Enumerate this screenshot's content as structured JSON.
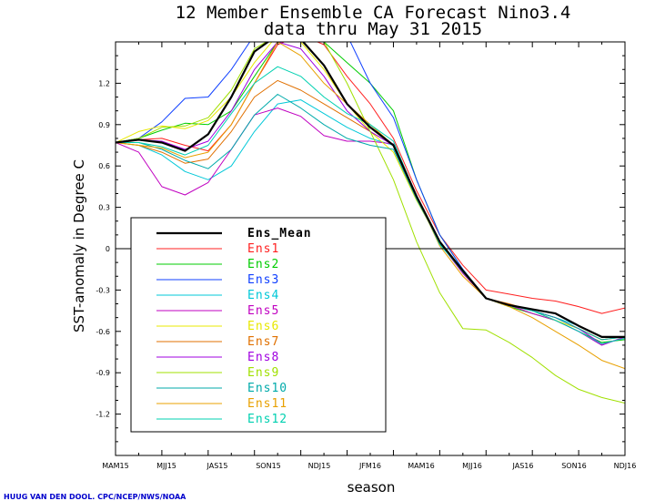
{
  "chart_data": {
    "type": "line",
    "title": "12 Member Ensemble CA Forecast Nino3.4",
    "subtitle": "data thru May 31 2015",
    "xlabel": "season",
    "ylabel": "SST-anomaly in Degree C",
    "credit": "HUUG VAN DEN DOOL. CPC/NCEP/NWS/NOAA",
    "x_ticks": [
      "MAM15",
      "MJJ15",
      "JAS15",
      "SON15",
      "NDJ15",
      "JFM16",
      "MAM16",
      "MJJ16",
      "JAS16",
      "SON16",
      "NDJ16"
    ],
    "y_ticks": [
      1.2,
      0.9,
      0.6,
      0.3,
      0,
      -0.3,
      -0.6,
      -0.9,
      -1.2
    ],
    "ylim": [
      -1.5,
      1.5
    ],
    "grid": false,
    "legend_position": "bottom-left",
    "series": [
      {
        "name": "Ens_Mean",
        "color": "#000000",
        "values": [
          0.77,
          0.79,
          0.77,
          0.71,
          0.83,
          1.1,
          1.43,
          1.55,
          1.52,
          1.33,
          1.05,
          0.88,
          0.75,
          0.38,
          0.05,
          -0.16,
          -0.36,
          -0.41,
          -0.44,
          -0.47,
          -0.56,
          -0.64,
          -0.64
        ]
      },
      {
        "name": "Ens1",
        "color": "#ff2020",
        "values": [
          0.77,
          0.79,
          0.8,
          0.75,
          0.71,
          0.9,
          1.2,
          1.48,
          1.55,
          1.48,
          1.25,
          1.05,
          0.8,
          0.42,
          0.1,
          -0.12,
          -0.3,
          -0.33,
          -0.36,
          -0.38,
          -0.42,
          -0.47,
          -0.43
        ]
      },
      {
        "name": "Ens2",
        "color": "#00cc00",
        "values": [
          0.77,
          0.8,
          0.86,
          0.91,
          0.9,
          1.0,
          1.25,
          1.5,
          1.55,
          1.5,
          1.35,
          1.2,
          1.0,
          0.5,
          0.1,
          -0.15,
          -0.36,
          -0.42,
          -0.47,
          -0.52,
          -0.6,
          -0.68,
          -0.66
        ]
      },
      {
        "name": "Ens3",
        "color": "#1040ff",
        "values": [
          0.77,
          0.8,
          0.92,
          1.09,
          1.1,
          1.3,
          1.55,
          1.55,
          1.55,
          1.55,
          1.55,
          1.2,
          0.95,
          0.5,
          0.1,
          -0.15,
          -0.36,
          -0.41,
          -0.45,
          -0.52,
          -0.6,
          -0.7,
          -0.64
        ]
      },
      {
        "name": "Ens4",
        "color": "#00c8d8",
        "values": [
          0.77,
          0.75,
          0.68,
          0.56,
          0.5,
          0.6,
          0.85,
          1.05,
          1.08,
          0.98,
          0.88,
          0.8,
          0.75,
          0.38,
          0.05,
          -0.16,
          -0.36,
          -0.41,
          -0.45,
          -0.5,
          -0.56,
          -0.64,
          -0.64
        ]
      },
      {
        "name": "Ens5",
        "color": "#c000c0",
        "values": [
          0.77,
          0.7,
          0.45,
          0.39,
          0.48,
          0.72,
          0.97,
          1.02,
          0.96,
          0.82,
          0.78,
          0.78,
          0.76,
          0.38,
          0.04,
          -0.18,
          -0.36,
          -0.41,
          -0.47,
          -0.52,
          -0.6,
          -0.7,
          -0.64
        ]
      },
      {
        "name": "Ens6",
        "color": "#e8e800",
        "values": [
          0.77,
          0.85,
          0.89,
          0.87,
          0.93,
          1.1,
          1.35,
          1.55,
          1.5,
          1.3,
          1.05,
          0.85,
          0.7,
          0.35,
          0.05,
          -0.16,
          -0.36,
          -0.41,
          -0.45,
          -0.52,
          -0.58,
          -0.66,
          -0.64
        ]
      },
      {
        "name": "Ens7",
        "color": "#e07000",
        "values": [
          0.77,
          0.75,
          0.7,
          0.62,
          0.65,
          0.85,
          1.1,
          1.22,
          1.15,
          1.05,
          0.95,
          0.85,
          0.75,
          0.37,
          0.04,
          -0.17,
          -0.36,
          -0.4,
          -0.45,
          -0.5,
          -0.58,
          -0.66,
          -0.64
        ]
      },
      {
        "name": "Ens8",
        "color": "#a000e0",
        "values": [
          0.77,
          0.79,
          0.78,
          0.72,
          0.78,
          1.0,
          1.3,
          1.5,
          1.45,
          1.25,
          1.0,
          0.85,
          0.75,
          0.38,
          0.05,
          -0.16,
          -0.36,
          -0.41,
          -0.45,
          -0.5,
          -0.58,
          -0.69,
          -0.65
        ]
      },
      {
        "name": "Ens9",
        "color": "#a0e000",
        "values": [
          0.77,
          0.8,
          0.88,
          0.89,
          0.95,
          1.15,
          1.45,
          1.55,
          1.55,
          1.5,
          1.2,
          0.85,
          0.5,
          0.05,
          -0.32,
          -0.58,
          -0.59,
          -0.68,
          -0.79,
          -0.92,
          -1.02,
          -1.08,
          -1.12
        ]
      },
      {
        "name": "Ens10",
        "color": "#00aaaa",
        "values": [
          0.77,
          0.77,
          0.72,
          0.64,
          0.58,
          0.72,
          0.97,
          1.12,
          1.02,
          0.9,
          0.8,
          0.75,
          0.72,
          0.36,
          0.04,
          -0.17,
          -0.36,
          -0.41,
          -0.45,
          -0.5,
          -0.58,
          -0.66,
          -0.64
        ]
      },
      {
        "name": "Ens11",
        "color": "#e8a000",
        "values": [
          0.77,
          0.75,
          0.73,
          0.66,
          0.7,
          0.9,
          1.2,
          1.5,
          1.4,
          1.2,
          1.05,
          0.9,
          0.75,
          0.38,
          0.02,
          -0.2,
          -0.36,
          -0.42,
          -0.5,
          -0.6,
          -0.7,
          -0.81,
          -0.87
        ]
      },
      {
        "name": "Ens12",
        "color": "#00d0b0",
        "values": [
          0.77,
          0.77,
          0.74,
          0.68,
          0.75,
          0.98,
          1.2,
          1.32,
          1.25,
          1.1,
          0.98,
          0.9,
          0.78,
          0.38,
          0.03,
          -0.16,
          -0.36,
          -0.41,
          -0.45,
          -0.52,
          -0.6,
          -0.69,
          -0.65
        ]
      }
    ]
  }
}
